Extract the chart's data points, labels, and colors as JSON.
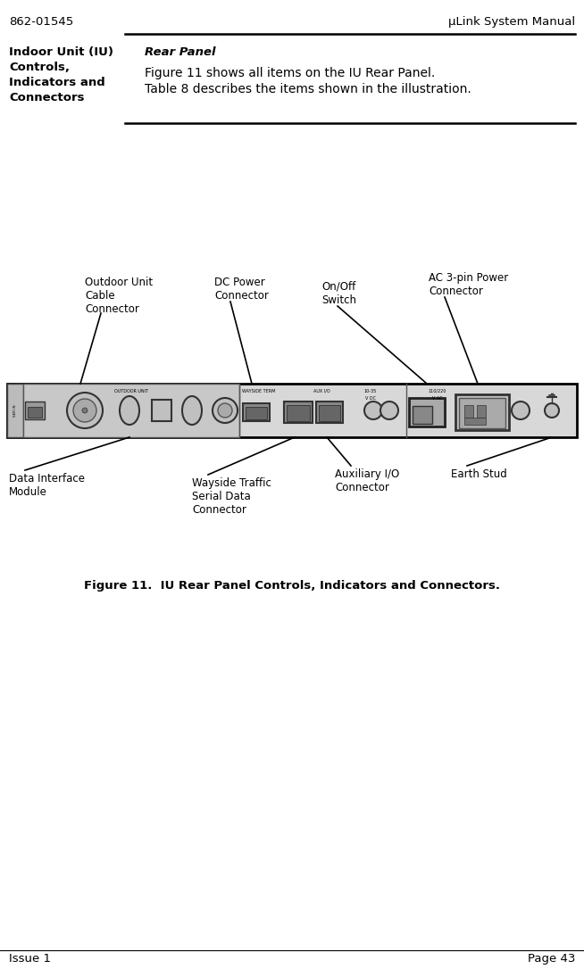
{
  "header_left": "862-01545",
  "header_right": "μLink System Manual",
  "footer_left": "Issue 1",
  "footer_right": "Page 43",
  "section_label": "Indoor Unit (IU)\nControls,\nIndicators and\nConnectors",
  "section_title": "Rear Panel",
  "section_body_line1": "Figure 11 shows all items on the IU Rear Panel.",
  "section_body_line2": "Table 8 describes the items shown in the illustration.",
  "figure_caption": "Figure 11.  IU Rear Panel Controls, Indicators and Connectors.",
  "labels_top": [
    "Outdoor Unit\nCable\nConnector",
    "DC Power\nConnector",
    "On/Off\nSwitch",
    "AC 3-pin Power\nConnector"
  ],
  "labels_bottom": [
    "Data Interface\nModule",
    "Wayside Traffic\nSerial Data\nConnector",
    "Auxiliary I/O\nConnector",
    "Earth Stud"
  ],
  "bg_color": "#ffffff",
  "text_color": "#000000",
  "line_color": "#000000"
}
